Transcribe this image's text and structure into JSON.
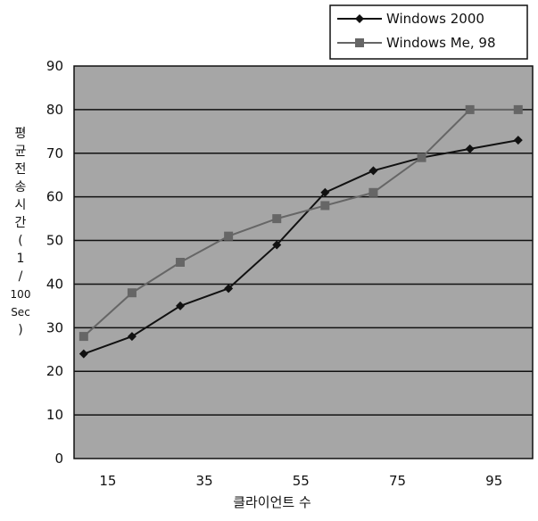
{
  "chart_data": {
    "type": "line",
    "title": "",
    "xlabel": "클라이언트 수",
    "ylabel": "평균전송시간(1/100 Sec)",
    "ylabel_lines": [
      "평",
      "균",
      "전",
      "송",
      "시",
      "간",
      "(",
      "1",
      "/",
      "100",
      "Sec",
      ")"
    ],
    "x": [
      10,
      20,
      30,
      40,
      50,
      60,
      70,
      80,
      90,
      100
    ],
    "x_ticks": [
      15,
      35,
      55,
      75,
      95
    ],
    "xlim": [
      8,
      103
    ],
    "ylim": [
      0,
      90
    ],
    "y_ticks": [
      0,
      10,
      20,
      30,
      40,
      50,
      60,
      70,
      80,
      90
    ],
    "grid": true,
    "legend_position": "top-right",
    "series": [
      {
        "name": "Windows 2000",
        "marker": "diamond",
        "color": "#111111",
        "values": [
          24,
          28,
          35,
          39,
          49,
          61,
          66,
          69,
          71,
          73
        ]
      },
      {
        "name": "Windows Me, 98",
        "marker": "square",
        "color": "#666666",
        "values": [
          28,
          38,
          45,
          51,
          55,
          58,
          61,
          69,
          80,
          80
        ]
      }
    ],
    "plot_background": "#a6a6a6"
  }
}
